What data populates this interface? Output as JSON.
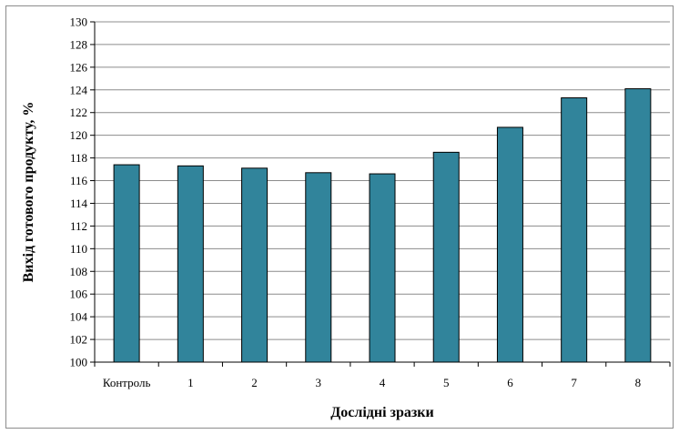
{
  "chart_data": {
    "type": "bar",
    "title": "",
    "xlabel": "Дослідні зразки",
    "ylabel": "Вихід готового продукту, %",
    "categories": [
      "Контроль",
      "1",
      "2",
      "3",
      "4",
      "5",
      "6",
      "7",
      "8"
    ],
    "values": [
      117.4,
      117.3,
      117.1,
      116.7,
      116.6,
      118.5,
      120.7,
      123.3,
      124.1
    ],
    "ylim": [
      100,
      130
    ],
    "yticks": [
      100,
      102,
      104,
      106,
      108,
      110,
      112,
      114,
      116,
      118,
      120,
      122,
      124,
      126,
      128,
      130
    ],
    "grid": true,
    "legend": "none",
    "bar_color": "#31849b",
    "bar_edge_color": "#000000"
  }
}
